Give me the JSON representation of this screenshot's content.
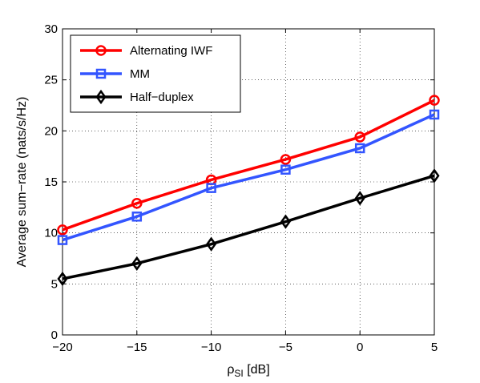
{
  "chart_data": {
    "type": "line",
    "x": [
      -20,
      -15,
      -10,
      -5,
      0,
      5
    ],
    "xlim": [
      -20,
      5
    ],
    "ylim": [
      0,
      30
    ],
    "xticks": [
      -20,
      -15,
      -10,
      -5,
      0,
      5
    ],
    "xtick_labels": [
      "−20",
      "−15",
      "−10",
      "−5",
      "0",
      "5"
    ],
    "yticks": [
      0,
      5,
      10,
      15,
      20,
      25,
      30
    ],
    "ytick_labels": [
      "0",
      "5",
      "10",
      "15",
      "20",
      "25",
      "30"
    ],
    "xlabel_main": "ρ",
    "xlabel_sub": "SI",
    "xlabel_rest": " [dB]",
    "ylabel": "Average sum−rate (nats/s/Hz)",
    "grid": true,
    "legend_position": "top-left",
    "series": [
      {
        "name": "Alternating IWF",
        "color": "#ff0000",
        "marker": "circle",
        "values": [
          10.3,
          12.9,
          15.2,
          17.2,
          19.4,
          23.0
        ]
      },
      {
        "name": "MM",
        "color": "#3355ff",
        "marker": "square",
        "values": [
          9.3,
          11.6,
          14.4,
          16.2,
          18.3,
          21.6
        ]
      },
      {
        "name": "Half−duplex",
        "color": "#000000",
        "marker": "diamond",
        "values": [
          5.5,
          7.0,
          8.9,
          11.1,
          13.4,
          15.6
        ]
      }
    ]
  }
}
